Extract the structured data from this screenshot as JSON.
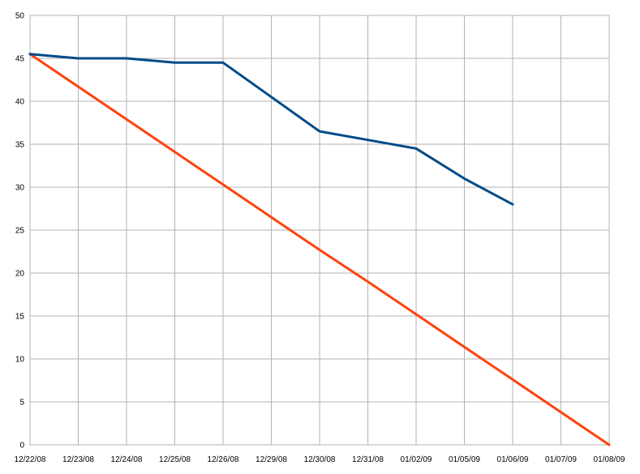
{
  "chart_data": {
    "type": "line",
    "title": "",
    "xlabel": "",
    "ylabel": "",
    "categories": [
      "12/22/08",
      "12/23/08",
      "12/24/08",
      "12/25/08",
      "12/26/08",
      "12/29/08",
      "12/30/08",
      "12/31/08",
      "01/02/09",
      "01/05/09",
      "01/06/09",
      "01/07/09",
      "01/08/09"
    ],
    "y_ticks": [
      "0",
      "5",
      "10",
      "15",
      "20",
      "25",
      "30",
      "35",
      "40",
      "45",
      "50"
    ],
    "ylim": [
      0,
      50
    ],
    "grid": true,
    "legend": "none",
    "series": [
      {
        "color": "#004b87",
        "values": [
          45.5,
          45,
          45,
          44.5,
          44.5,
          40.5,
          36.5,
          35.5,
          34.5,
          31,
          28,
          null,
          null
        ]
      },
      {
        "color": "#ff420e",
        "values": [
          45.5,
          41.7,
          37.9,
          34.1,
          30.3,
          26.5,
          22.7,
          19.0,
          15.2,
          11.4,
          7.6,
          3.8,
          0
        ]
      }
    ],
    "colors": {
      "grid": "#b3b3b3",
      "axis": "#b3b3b3"
    }
  }
}
